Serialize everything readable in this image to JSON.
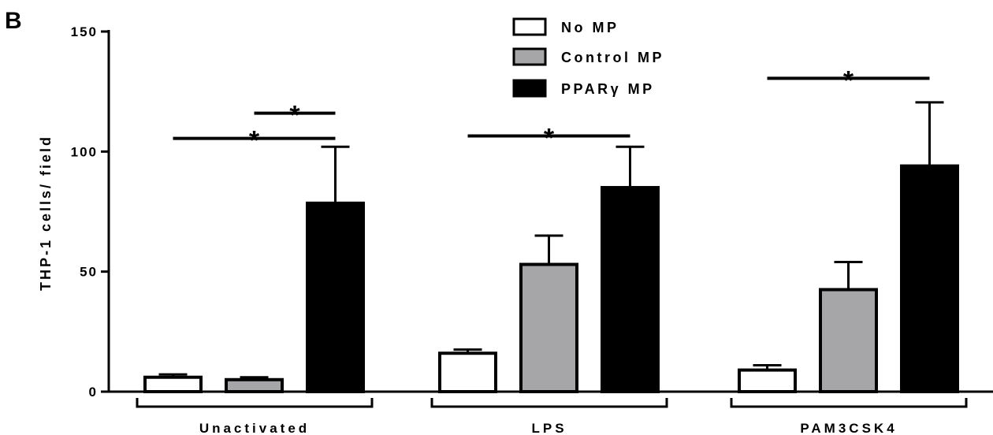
{
  "panel_label": "B",
  "chart_data": {
    "type": "bar",
    "title": "",
    "xlabel": "",
    "ylabel": "THP-1 cells/ field",
    "ylim": [
      0,
      150
    ],
    "yticks": [
      0,
      50,
      100,
      150
    ],
    "y_tick_labels": [
      "0",
      "50",
      "100",
      "150"
    ],
    "categories": [
      "Unactivated",
      "LPS",
      "PAM3CSK4"
    ],
    "legend_position": "top-center",
    "series": [
      {
        "name": "No MP",
        "color": "#ffffff",
        "values": [
          6,
          16,
          9
        ],
        "errors": [
          1.2,
          1.5,
          2
        ]
      },
      {
        "name": "Control MP",
        "color": "#a6a6a8",
        "values": [
          5,
          53,
          42.5
        ],
        "errors": [
          1,
          12,
          11.5
        ]
      },
      {
        "name": "PPARγ MP",
        "color": "#000000",
        "values": [
          78.5,
          85,
          94
        ],
        "errors": [
          23.5,
          17,
          26.5
        ]
      }
    ],
    "significance": [
      {
        "label": "*",
        "category": 0,
        "from_series": 1,
        "to_series": 2,
        "y": 116
      },
      {
        "label": "*",
        "category": 0,
        "from_series": 0,
        "to_series": 2,
        "y": 105.5
      },
      {
        "label": "*",
        "category": 1,
        "from_series": 0,
        "to_series": 2,
        "y": 106.5
      },
      {
        "label": "*",
        "category": 2,
        "from_series": 0,
        "to_series": 2,
        "y": 130.5
      }
    ]
  }
}
